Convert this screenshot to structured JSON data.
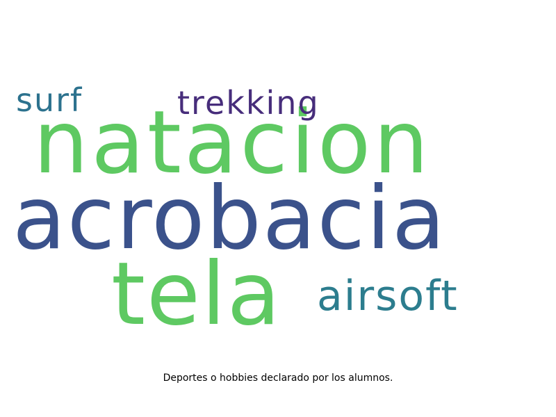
{
  "cloud": {
    "words": [
      {
        "text": "natacion",
        "color": "#5ec962"
      },
      {
        "text": "acrobacia",
        "color": "#3b528b"
      },
      {
        "text": "tela",
        "color": "#5ec962"
      },
      {
        "text": "trekking",
        "color": "#472d7b"
      },
      {
        "text": "surf",
        "color": "#2c728e"
      },
      {
        "text": "airsoft",
        "color": "#2c7d8e"
      }
    ]
  },
  "caption": "Deportes o hobbies declarado por los alumnos."
}
